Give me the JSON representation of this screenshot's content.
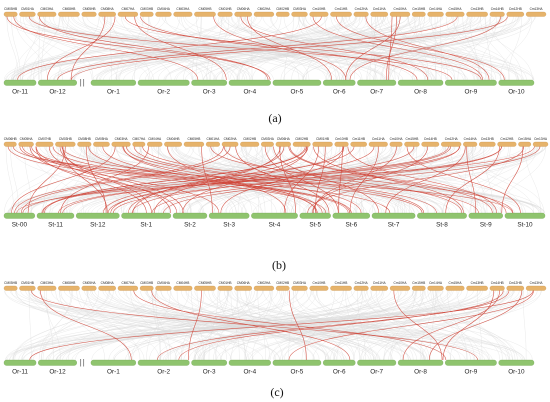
{
  "colors": {
    "top_bar": "#e6b36b",
    "top_bar_stroke": "#c8924a",
    "bottom_bar": "#8fc46e",
    "bottom_bar_stroke": "#6ea34f",
    "background_link": "#d9d9d9",
    "highlight_link": "#d0473b"
  },
  "panels": [
    {
      "id": "a",
      "label": "(a)",
      "top_chromosomes": [
        "CM05HB",
        "CM01HA",
        "CM03HA",
        "CM08HB",
        "CM05HB",
        "CM08HA",
        "CM07HA",
        "CM03HB",
        "CM04HA",
        "CM03HA",
        "CM05HB",
        "CM01HB",
        "CM06HA",
        "CM02HA",
        "CM02HB",
        "CM03HA",
        "Cm10HB",
        "Cm11HB",
        "Cm12HA",
        "Cm11HA",
        "Cm10HA",
        "Cm15HB",
        "Cm14HA",
        "Cm15HA",
        "Cm13HB",
        "Cm14HB",
        "Cm12HB",
        "Cm13HA"
      ],
      "bottom_chromosomes": [
        "Or-11",
        "Or-12",
        "Or-1",
        "Or-2",
        "Or-3",
        "Or-4",
        "Or-5",
        "Or-6",
        "Or-7",
        "Or-8",
        "Or-9",
        "Or-10"
      ],
      "highlight_count": 22
    },
    {
      "id": "b",
      "label": "(b)",
      "top_chromosomes": [
        "CM06HB",
        "CM05HA",
        "CM07HB",
        "CM03HB",
        "CM08HB",
        "CM05HA",
        "CM03HA",
        "CM07HA",
        "CM04HA",
        "CM04HB",
        "CM05HB",
        "CM01HA",
        "CM02HA",
        "CM02HB",
        "CM03HA",
        "CM06HA",
        "CM02HB",
        "CM01HB",
        "Cm10HB",
        "Cm11HB",
        "Cm11HA",
        "Cm10HA",
        "Cm15HB",
        "Cm14HB",
        "Cm12HA",
        "Cm14HA",
        "Cm13HB",
        "Cm12HB",
        "Cm15HA",
        "Cm13HA"
      ],
      "bottom_chromosomes": [
        "St-00",
        "St-11",
        "St-12",
        "St-1",
        "St-2",
        "St-3",
        "St-4",
        "St-5",
        "St-6",
        "St-7",
        "St-8",
        "St-9",
        "St-10"
      ],
      "highlight_count": 70
    },
    {
      "id": "c",
      "label": "(c)",
      "top_chromosomes": [
        "CM05HB",
        "CM01HB",
        "CM03HA",
        "CM08HB",
        "CM05HA",
        "CM08HA",
        "CM07HA",
        "CM03HB",
        "CM04HA",
        "CM04HB",
        "CM05HB",
        "CM01HB",
        "CM06HA",
        "CM02HA",
        "CM02HB",
        "CM03HA",
        "Cm10HB",
        "Cm11HB",
        "Cm12HA",
        "Cm11HA",
        "Cm10HA",
        "Cm15HB",
        "Cm14HA",
        "Cm15HA",
        "Cm13HB",
        "Cm14HB",
        "Cm12HB",
        "Cm13HA"
      ],
      "bottom_chromosomes": [
        "Or-11",
        "Or-12",
        "Or-1",
        "Or-2",
        "Or-3",
        "Or-4",
        "Or-5",
        "Or-6",
        "Or-7",
        "Or-8",
        "Or-9",
        "Or-10"
      ],
      "highlight_count": 14
    }
  ]
}
